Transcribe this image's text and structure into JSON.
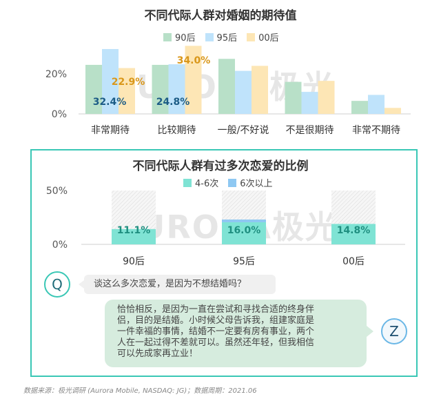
{
  "charts": {
    "chart1": {
      "title": "不同代际人群对婚姻的期待值",
      "legend": [
        "90后",
        "95后",
        "00后"
      ],
      "colors": [
        "#b8e0c8",
        "#bfe3fb",
        "#fde6b5"
      ]
    },
    "chart2": {
      "title": "不同代际人群有过多次恋爱的比例",
      "legend": [
        "4-6次",
        "6次以上"
      ],
      "colors": [
        "#7fe3d4",
        "#8ec8f2"
      ]
    }
  },
  "watermark": "URORA极光",
  "dialog": {
    "q_letter": "Q",
    "question": "谈这么多次恋爱，是因为不想结婚吗？",
    "z_letter": "Z",
    "answer_lines": [
      "恰恰相反，是因为一直在尝试和寻找合适的终身伴",
      "侣，目的是结婚。小时候父母告诉我，组建家庭是",
      "一件幸福的事情，结婚不一定要有房有事业，两个",
      "人在一起过得不差就可以。虽然还年轻，但我相信",
      "可以先成家再立业！"
    ]
  },
  "footer": {
    "source": "数据来源：极光调研 (Aurora Mobile, NASDAQ: JG)；数据周期：2021.06"
  },
  "chart_data": [
    {
      "type": "bar",
      "title": "不同代际人群对婚姻的期待值",
      "categories": [
        "非常期待",
        "比较期待",
        "一般/不好说",
        "不是很期待",
        "非常不期待"
      ],
      "series": [
        {
          "name": "90后",
          "values": [
            24.5,
            24.5,
            27.5,
            16.0,
            6.5
          ]
        },
        {
          "name": "95后",
          "values": [
            32.4,
            24.8,
            21.5,
            11.0,
            9.5
          ]
        },
        {
          "name": "00后",
          "values": [
            22.9,
            34.0,
            24.0,
            16.5,
            3.0
          ]
        }
      ],
      "value_labels": [
        {
          "series": 1,
          "index": 0,
          "text": "32.4%",
          "color": "#1c5c86"
        },
        {
          "series": 2,
          "index": 0,
          "text": "22.9%",
          "color": "#d9971a"
        },
        {
          "series": 1,
          "index": 1,
          "text": "24.8%",
          "color": "#1c5c86"
        },
        {
          "series": 2,
          "index": 1,
          "text": "34.0%",
          "color": "#d9971a"
        }
      ],
      "yticks": [
        "0%",
        "20%"
      ],
      "ylim": [
        0,
        40
      ]
    },
    {
      "type": "bar",
      "title": "不同代际人群有过多次恋爱的比例",
      "categories": [
        "90后",
        "95后",
        "00后"
      ],
      "series": [
        {
          "name": "4-6次",
          "values": [
            11.1,
            16.0,
            14.8
          ]
        },
        {
          "name": "6次以上",
          "values": [
            0,
            2.0,
            0
          ]
        }
      ],
      "value_labels": [
        "11.1%",
        "16.0%",
        "14.8%"
      ],
      "yticks": [
        "0%",
        "50%"
      ],
      "ylim": [
        0,
        50
      ]
    }
  ]
}
